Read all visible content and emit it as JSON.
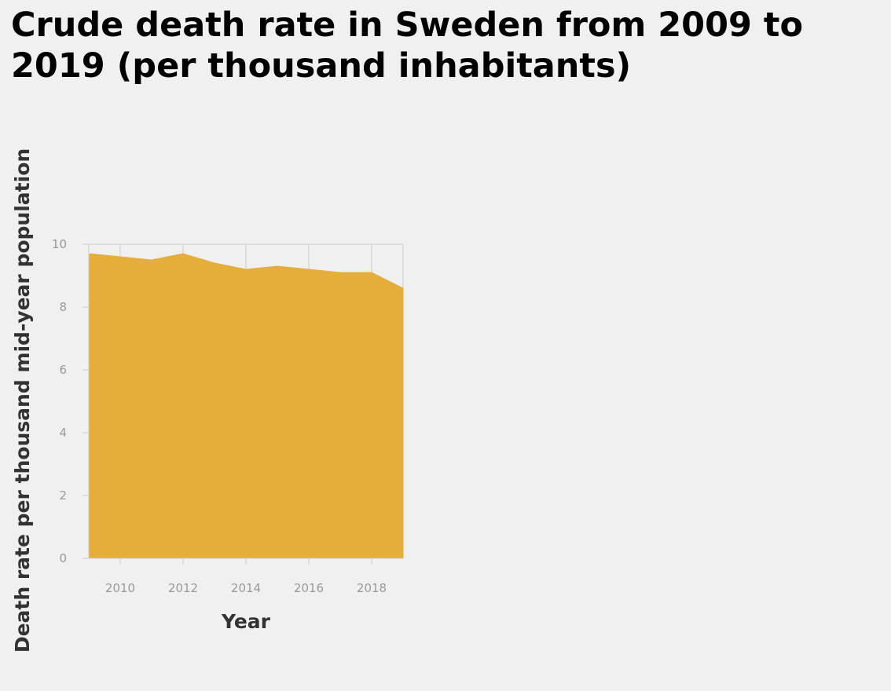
{
  "chart_data": {
    "type": "area",
    "title": "Crude death rate in Sweden from 2009 to 2019 (per thousand inhabitants)",
    "xlabel": "Year",
    "ylabel": "Death rate per thousand mid-year population",
    "x": [
      2009,
      2010,
      2011,
      2012,
      2013,
      2014,
      2015,
      2016,
      2017,
      2018,
      2019
    ],
    "values": [
      9.7,
      9.6,
      9.5,
      9.7,
      9.4,
      9.2,
      9.3,
      9.2,
      9.1,
      9.1,
      8.6
    ],
    "xlim": [
      2009,
      2019
    ],
    "ylim": [
      0,
      10
    ],
    "x_ticks": [
      2010,
      2012,
      2014,
      2016,
      2018
    ],
    "y_ticks": [
      0,
      2,
      4,
      6,
      8,
      10
    ],
    "grid": true,
    "fill_color": "#e5ae3b",
    "grid_color": "#cccccc",
    "background_color": "#f0f0f0"
  }
}
